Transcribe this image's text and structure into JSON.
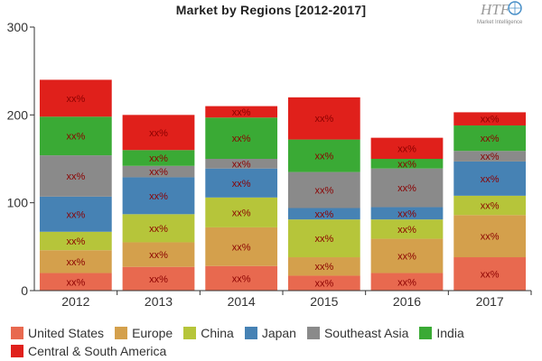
{
  "watermark": {
    "logo_text": "HTF",
    "sub_text": "Market Intelligence"
  },
  "chart_data": {
    "type": "bar",
    "stacked": true,
    "title": "Market by Regions [2012-2017]",
    "categories": [
      "2012",
      "2013",
      "2014",
      "2015",
      "2016",
      "2017"
    ],
    "ylim": [
      0,
      300
    ],
    "yticks": [
      0,
      100,
      200,
      300
    ],
    "grid": false,
    "legend_position": "bottom",
    "data_label": "xx%",
    "series": [
      {
        "name": "United States",
        "color": "#e8694f",
        "values": [
          20,
          27,
          28,
          17,
          20,
          38
        ]
      },
      {
        "name": "Europe",
        "color": "#d4a04c",
        "values": [
          26,
          28,
          44,
          21,
          39,
          48
        ]
      },
      {
        "name": "China",
        "color": "#b6c53a",
        "values": [
          21,
          32,
          34,
          43,
          22,
          22
        ]
      },
      {
        "name": "Japan",
        "color": "#4682b4",
        "values": [
          40,
          42,
          33,
          13,
          14,
          39
        ]
      },
      {
        "name": "Southeast Asia",
        "color": "#8a8a8a",
        "values": [
          47,
          13,
          11,
          41,
          44,
          12
        ]
      },
      {
        "name": "India",
        "color": "#3aaa35",
        "values": [
          44,
          18,
          47,
          37,
          11,
          29
        ]
      },
      {
        "name": "Central & South America",
        "color": "#e0201b",
        "values": [
          42,
          40,
          13,
          48,
          24,
          15
        ]
      }
    ]
  }
}
